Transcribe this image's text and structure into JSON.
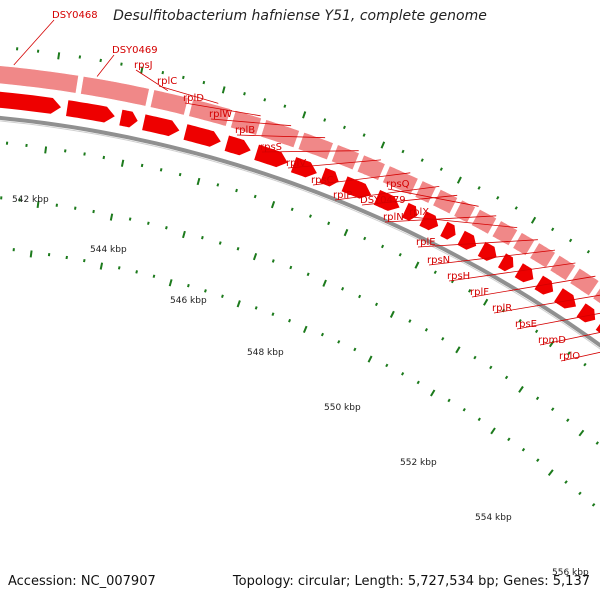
{
  "title": "Desulfitobacterium hafniense Y51, complete genome",
  "footer": {
    "accession": "Accession: NC_007907",
    "topology": "Topology: circular; Length: 5,727,534 bp; Genes: 5,137"
  },
  "colors": {
    "cds_band": "#f08888",
    "highlight_green": "#a8e838",
    "highlight_blue": "#2ca0e0",
    "gene_arrow": "#ee0000",
    "backbone": "#909090",
    "label": "#d40000",
    "tick": "#1c7a1c"
  },
  "scale_labels": [
    "542 kbp",
    "544 kbp",
    "546 kbp",
    "548 kbp",
    "550 kbp",
    "552 kbp",
    "554 kbp",
    "556 kbp"
  ],
  "genes": [
    {
      "name": "DSY0468",
      "pos": 0.01
    },
    {
      "name": "DSY0469",
      "pos": 0.115
    },
    {
      "name": "rpsJ",
      "pos": 0.205
    },
    {
      "name": "rplC",
      "pos": 0.27
    },
    {
      "name": "rplD",
      "pos": 0.325
    },
    {
      "name": "rplW",
      "pos": 0.365
    },
    {
      "name": "rplB",
      "pos": 0.41
    },
    {
      "name": "rpsS",
      "pos": 0.455
    },
    {
      "name": "rplV",
      "pos": 0.485
    },
    {
      "name": "rpsC",
      "pos": 0.525
    },
    {
      "name": "rplP",
      "pos": 0.565
    },
    {
      "name": "DSY0479",
      "pos": 0.59
    },
    {
      "name": "rpsQ",
      "pos": 0.62
    },
    {
      "name": "rplN",
      "pos": 0.645
    },
    {
      "name": "rplX",
      "pos": 0.675
    },
    {
      "name": "rplE",
      "pos": 0.705
    },
    {
      "name": "rpsN",
      "pos": 0.73
    },
    {
      "name": "rpsH",
      "pos": 0.76
    },
    {
      "name": "rplF",
      "pos": 0.79
    },
    {
      "name": "rplR",
      "pos": 0.825
    },
    {
      "name": "rpsE",
      "pos": 0.855
    },
    {
      "name": "rpmD",
      "pos": 0.885
    },
    {
      "name": "rplO",
      "pos": 0.915
    }
  ]
}
